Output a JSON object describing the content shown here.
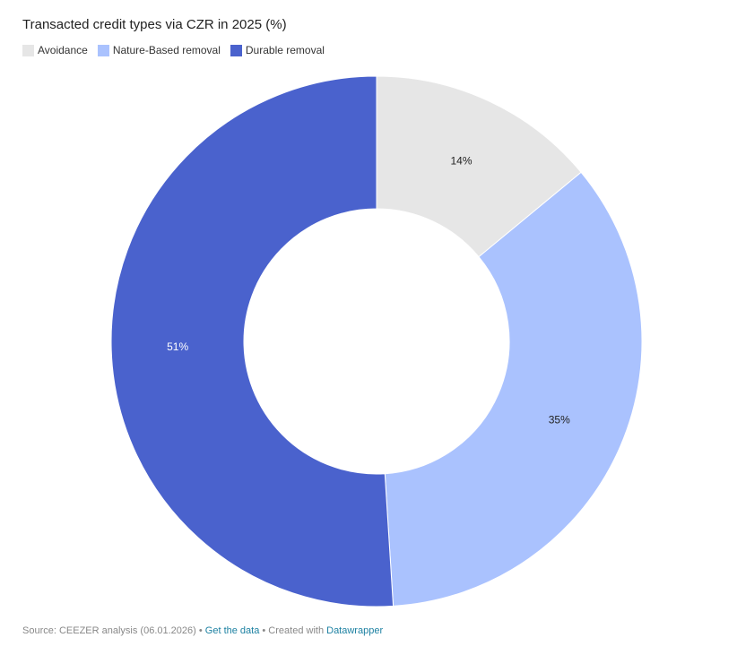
{
  "title": "Transacted credit types via CZR in 2025 (%)",
  "legend": [
    {
      "label": "Avoidance",
      "color": "#e6e6e6"
    },
    {
      "label": "Nature-Based removal",
      "color": "#aac2fe"
    },
    {
      "label": "Durable removal",
      "color": "#4a62cd"
    }
  ],
  "chart_data": {
    "type": "pie",
    "donut": true,
    "title": "Transacted credit types via CZR in 2025 (%)",
    "legend_placement": "top-left",
    "slices": [
      {
        "name": "Avoidance",
        "value": 14,
        "label": "14%",
        "color": "#e6e6e6",
        "label_color": "#222222"
      },
      {
        "name": "Nature-Based removal",
        "value": 35,
        "label": "35%",
        "color": "#aac2fe",
        "label_color": "#222222"
      },
      {
        "name": "Durable removal",
        "value": 51,
        "label": "51%",
        "color": "#4a62cd",
        "label_color": "#ffffff"
      }
    ]
  },
  "footer": {
    "source": "Source: CEEZER analysis (06.01.2026)",
    "sep1": " • ",
    "get_data": "Get the data",
    "sep2": " • Created with ",
    "created_with": "Datawrapper"
  }
}
